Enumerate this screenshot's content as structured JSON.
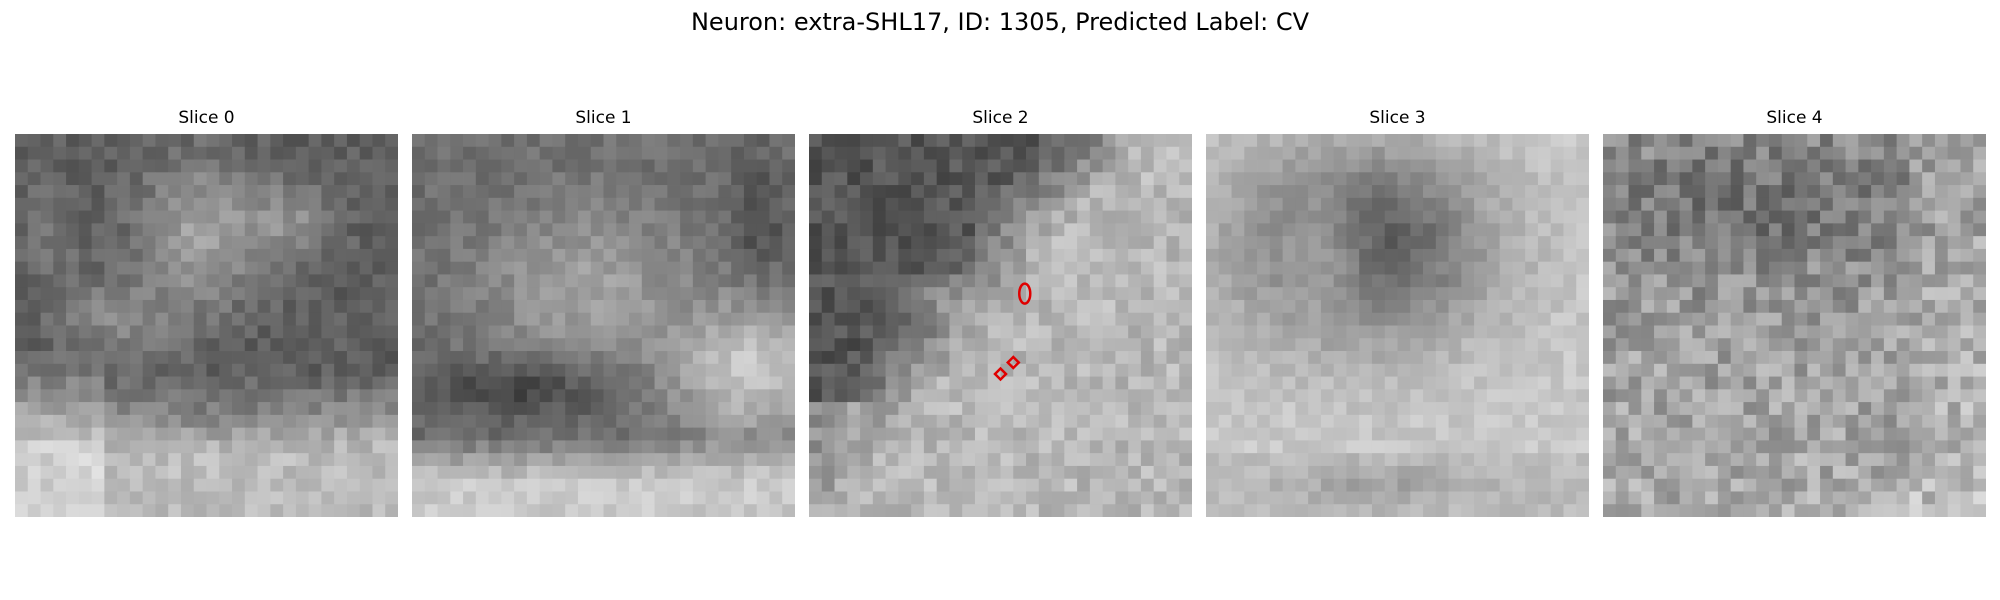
{
  "figure": {
    "title": "Neuron: extra-SHL17, ID: 1305, Predicted Label: CV"
  },
  "panels": [
    {
      "title": "Slice 0",
      "image": {
        "description_kind": "grayscale microscopy patch",
        "grid": [
          30,
          30
        ],
        "tone": {
          "base": 0.42,
          "bright": 0.78,
          "noise": 0.16
        },
        "pattern": "cell-clusters-top-bright-bottom",
        "markers": []
      }
    },
    {
      "title": "Slice 1",
      "image": {
        "description_kind": "grayscale microscopy patch",
        "grid": [
          30,
          30
        ],
        "tone": {
          "base": 0.44,
          "bright": 0.82,
          "noise": 0.14
        },
        "pattern": "dark-band-bright-corners",
        "markers": []
      }
    },
    {
      "title": "Slice 2",
      "image": {
        "description_kind": "grayscale microscopy patch",
        "grid": [
          30,
          30
        ],
        "tone": {
          "base": 0.3,
          "bright": 0.76,
          "noise": 0.2
        },
        "pattern": "dark-top-bright-diagonal",
        "markers": [
          {
            "shape": "vertical-oval",
            "color": "#e00000",
            "cell": [
              16.9,
              12.5
            ]
          },
          {
            "shape": "diamond",
            "color": "#e00000",
            "cell": [
              15.0,
              18.8
            ]
          },
          {
            "shape": "diamond",
            "color": "#e00000",
            "cell": [
              16.0,
              17.9
            ]
          }
        ]
      }
    },
    {
      "title": "Slice 3",
      "image": {
        "description_kind": "grayscale microscopy patch",
        "grid": [
          30,
          30
        ],
        "tone": {
          "base": 0.34,
          "bright": 0.84,
          "noise": 0.12
        },
        "pattern": "dark-mass-top-bright-bottom",
        "markers": []
      }
    },
    {
      "title": "Slice 4",
      "image": {
        "description_kind": "grayscale microscopy patch",
        "grid": [
          30,
          30
        ],
        "tone": {
          "base": 0.44,
          "bright": 0.76,
          "noise": 0.3
        },
        "pattern": "noisy-dark-top",
        "markers": []
      }
    }
  ]
}
